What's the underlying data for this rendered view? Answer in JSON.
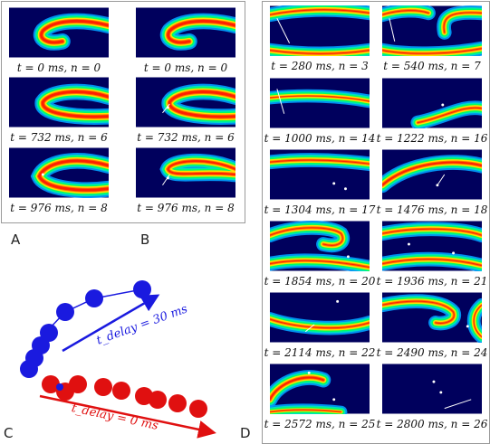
{
  "panels": {
    "A": "A",
    "B": "B",
    "C": "C",
    "D": "D"
  },
  "captions": {
    "a1": "t = 0 ms, n = 0",
    "a2": "t = 732 ms, n = 6",
    "a3": "t = 976 ms, n = 8",
    "b1": "t = 0 ms, n = 0",
    "b2": "t = 732 ms, n = 6",
    "b3": "t = 976 ms, n = 8",
    "d1": "t = 280 ms, n = 3",
    "d2": "t = 540 ms, n = 7",
    "d3": "t = 1000 ms, n = 14",
    "d4": "t = 1222 ms, n = 16",
    "d5": "t = 1304 ms, n = 17",
    "d6": "t = 1476 ms, n = 18",
    "d7": "t = 1854 ms, n = 20",
    "d8": "t = 1936 ms, n = 21",
    "d9": "t = 2114 ms, n = 22",
    "d10": "t = 2490 ms, n = 24",
    "d11": "t = 2572 ms, n = 25",
    "d12": "t = 2800 ms, n = 26"
  },
  "panel_c": {
    "blue_label": "t_delay = 30 ms",
    "red_label": "t_delay = 0 ms",
    "blue_color": "#1a1adf",
    "red_color": "#e01010"
  },
  "colors": {
    "bg": "#00003a",
    "wave_outer": "#00a0ff",
    "wave_mid": "#00ff60",
    "wave_core": "#ff2000"
  },
  "markers": {
    "A": "A",
    "B": "B",
    "C": "C"
  }
}
